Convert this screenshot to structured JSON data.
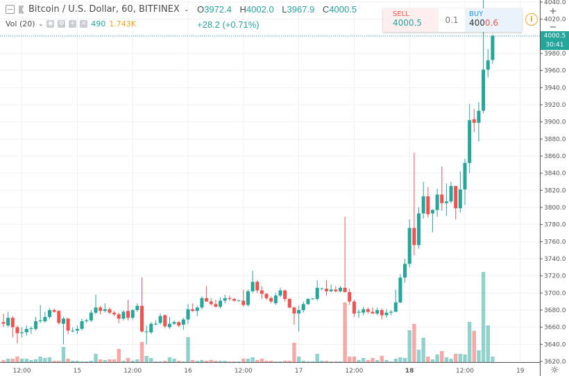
{
  "header": {
    "symbol": "Bitcoin / U.S. Dollar, 60, BITFINEX",
    "ohlc": {
      "o_label": "O",
      "o": "3972.4",
      "h_label": "H",
      "h": "4002.0",
      "l_label": "L",
      "l": "3967.9",
      "c_label": "C",
      "c": "4000.5",
      "change": "+28.2 (+0.71%)"
    }
  },
  "volume_legend": {
    "label": "Vol (20)",
    "value": "490",
    "ma": "1.743K"
  },
  "trade_widget": {
    "sell_label": "SELL",
    "sell_price": "4000.5",
    "quantity": "0.1",
    "buy_label": "BUY",
    "buy_price_main": "400",
    "buy_price_tail": "0.6"
  },
  "controls": {
    "info_icon": "info-icon",
    "zoom_in": "+",
    "zoom_out": "−",
    "settings_icon": "gear-icon"
  },
  "price_axis": {
    "current_price": "4000.5",
    "countdown": "30:41"
  },
  "colors": {
    "up": "#26a69a",
    "down": "#ef5350",
    "accent": "#f7a21b"
  },
  "chart_data": {
    "type": "candlestick",
    "interval": "60",
    "ylim": [
      3620,
      4040
    ],
    "ytick_step": 20,
    "grid": true,
    "current_price": 4000.5,
    "xticks": [
      "12:00",
      "15",
      "12:00",
      "16",
      "12:00",
      "17",
      "12:00",
      "18",
      "12:00",
      "19"
    ],
    "candles": [
      [
        3666,
        3676,
        3660,
        3664
      ],
      [
        3662,
        3678,
        3660,
        3671
      ],
      [
        3671,
        3673,
        3648,
        3660
      ],
      [
        3660,
        3662,
        3641,
        3653
      ],
      [
        3653,
        3660,
        3648,
        3654
      ],
      [
        3654,
        3662,
        3650,
        3658
      ],
      [
        3658,
        3661,
        3652,
        3659
      ],
      [
        3658,
        3672,
        3656,
        3667
      ],
      [
        3667,
        3686,
        3665,
        3668
      ],
      [
        3667,
        3678,
        3665,
        3672
      ],
      [
        3672,
        3682,
        3670,
        3680
      ],
      [
        3680,
        3682,
        3677,
        3678
      ],
      [
        3679,
        3680,
        3663,
        3665
      ],
      [
        3664,
        3672,
        3640,
        3670
      ],
      [
        3670,
        3671,
        3652,
        3656
      ],
      [
        3656,
        3660,
        3654,
        3656
      ],
      [
        3656,
        3662,
        3652,
        3658
      ],
      [
        3658,
        3670,
        3656,
        3667
      ],
      [
        3667,
        3670,
        3665,
        3668
      ],
      [
        3668,
        3680,
        3666,
        3677
      ],
      [
        3677,
        3698,
        3675,
        3683
      ],
      [
        3683,
        3685,
        3675,
        3679
      ],
      [
        3679,
        3688,
        3677,
        3681
      ],
      [
        3681,
        3683,
        3675,
        3677
      ],
      [
        3677,
        3679,
        3673,
        3675
      ],
      [
        3675,
        3677,
        3665,
        3670
      ],
      [
        3670,
        3680,
        3668,
        3678
      ],
      [
        3679,
        3692,
        3668,
        3671
      ],
      [
        3671,
        3681,
        3669,
        3680
      ],
      [
        3680,
        3688,
        3678,
        3685
      ],
      [
        3685,
        3718,
        3654,
        3655
      ],
      [
        3655,
        3662,
        3640,
        3655
      ],
      [
        3654,
        3666,
        3652,
        3664
      ],
      [
        3664,
        3668,
        3662,
        3664
      ],
      [
        3665,
        3676,
        3663,
        3673
      ],
      [
        3674,
        3675,
        3659,
        3661
      ],
      [
        3660,
        3672,
        3658,
        3664
      ],
      [
        3664,
        3668,
        3663,
        3666
      ],
      [
        3666,
        3667,
        3660,
        3662
      ],
      [
        3663,
        3671,
        3657,
        3669
      ],
      [
        3669,
        3687,
        3664,
        3681
      ],
      [
        3681,
        3688,
        3678,
        3679
      ],
      [
        3679,
        3685,
        3673,
        3683
      ],
      [
        3683,
        3696,
        3681,
        3694
      ],
      [
        3694,
        3708,
        3690,
        3690
      ],
      [
        3690,
        3694,
        3685,
        3687
      ],
      [
        3687,
        3692,
        3683,
        3684
      ],
      [
        3684,
        3695,
        3682,
        3691
      ],
      [
        3691,
        3698,
        3688,
        3694
      ],
      [
        3694,
        3697,
        3691,
        3693
      ],
      [
        3693,
        3694,
        3690,
        3691
      ],
      [
        3691,
        3692,
        3690,
        3691.5
      ],
      [
        3691,
        3704,
        3684,
        3686
      ],
      [
        3686,
        3704,
        3684,
        3702
      ],
      [
        3702,
        3726,
        3700,
        3713
      ],
      [
        3713,
        3715,
        3700,
        3703
      ],
      [
        3703,
        3708,
        3693,
        3699
      ],
      [
        3699,
        3700,
        3692,
        3694
      ],
      [
        3694,
        3696,
        3688,
        3690
      ],
      [
        3688,
        3700,
        3686,
        3697
      ],
      [
        3697,
        3706,
        3695,
        3703
      ],
      [
        3703,
        3704,
        3690,
        3693
      ],
      [
        3693,
        3694,
        3682,
        3683
      ],
      [
        3683,
        3684,
        3663,
        3676
      ],
      [
        3676,
        3685,
        3655,
        3680
      ],
      [
        3680,
        3690,
        3677,
        3687
      ],
      [
        3687,
        3694,
        3686,
        3693
      ],
      [
        3693,
        3694,
        3692,
        3693.5
      ],
      [
        3693,
        3715,
        3691,
        3706
      ],
      [
        3705,
        3706,
        3703,
        3705.5
      ],
      [
        3705,
        3715,
        3697,
        3702
      ],
      [
        3702,
        3710,
        3701,
        3704
      ],
      [
        3704,
        3708,
        3701,
        3702
      ],
      [
        3702,
        3708,
        3701,
        3706
      ],
      [
        3706,
        3789,
        3701,
        3701
      ],
      [
        3701,
        3705,
        3686,
        3690
      ],
      [
        3690,
        3692,
        3672,
        3676
      ],
      [
        3677,
        3681,
        3671,
        3678
      ],
      [
        3677,
        3684,
        3674,
        3681
      ],
      [
        3681,
        3683,
        3676,
        3678
      ],
      [
        3678,
        3683,
        3676,
        3676
      ],
      [
        3676,
        3683,
        3674,
        3680
      ],
      [
        3680,
        3682,
        3669,
        3674
      ],
      [
        3674,
        3681,
        3671,
        3677
      ],
      [
        3677,
        3680,
        3674,
        3678
      ],
      [
        3678,
        3704,
        3678,
        3689
      ],
      [
        3689,
        3722,
        3688,
        3718
      ],
      [
        3718,
        3740,
        3712,
        3734
      ],
      [
        3734,
        3786,
        3730,
        3776
      ],
      [
        3776,
        3864,
        3744,
        3756
      ],
      [
        3756,
        3800,
        3752,
        3793
      ],
      [
        3793,
        3830,
        3787,
        3813
      ],
      [
        3813,
        3824,
        3788,
        3792
      ],
      [
        3793,
        3798,
        3771,
        3797
      ],
      [
        3797,
        3822,
        3789,
        3815
      ],
      [
        3815,
        3848,
        3796,
        3805
      ],
      [
        3805,
        3828,
        3790,
        3807
      ],
      [
        3807,
        3830,
        3805,
        3825
      ],
      [
        3825,
        3825,
        3786,
        3799
      ],
      [
        3799,
        3842,
        3794,
        3821
      ],
      [
        3821,
        3857,
        3803,
        3852
      ],
      [
        3852,
        3921,
        3840,
        3902
      ],
      [
        3903,
        3915,
        3888,
        3899
      ],
      [
        3899,
        3923,
        3877,
        3913
      ],
      [
        3913,
        4060,
        3910,
        3961
      ],
      [
        3961,
        3985,
        3952,
        3972
      ],
      [
        3972.4,
        4002.0,
        3967.9,
        4000.5
      ]
    ],
    "volumes": [
      183,
      305,
      305,
      488,
      305,
      305,
      183,
      244,
      488,
      366,
      427,
      122,
      122,
      1342,
      305,
      122,
      122,
      61,
      61,
      122,
      732,
      244,
      183,
      244,
      244,
      1159,
      122,
      366,
      122,
      244,
      1769,
      549,
      366,
      61,
      61,
      122,
      427,
      305,
      122,
      61,
      2196,
      183,
      122,
      183,
      122,
      183,
      122,
      122,
      122,
      61,
      61,
      61,
      305,
      305,
      427,
      183,
      305,
      122,
      122,
      61,
      61,
      122,
      122,
      1708,
      488,
      122,
      61,
      61,
      732,
      122,
      122,
      61,
      61,
      61,
      5246,
      488,
      488,
      183,
      366,
      183,
      366,
      183,
      549,
      183,
      61,
      305,
      427,
      366,
      2806,
      3355,
      1098,
      2135,
      488,
      244,
      671,
      976,
      427,
      305,
      732,
      732,
      671,
      3538,
      2745,
      1037,
      7930,
      3233,
      490
    ]
  }
}
